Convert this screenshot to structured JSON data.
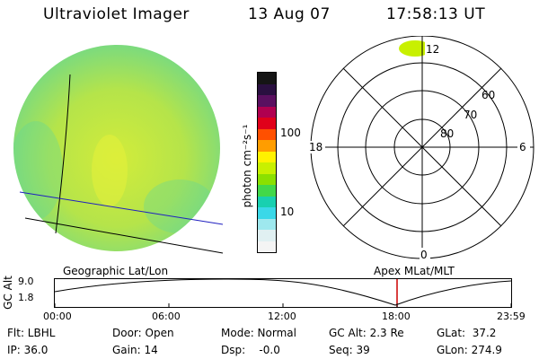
{
  "header": {
    "instrument": "Ultraviolet Imager",
    "date": "13 Aug 07",
    "time": "17:58:13 UT"
  },
  "colorbar": {
    "unit_label": "photon cm⁻²s⁻¹",
    "ticks": [
      "100",
      "10"
    ],
    "colors": [
      "#151515",
      "#2a1040",
      "#5a1060",
      "#b00050",
      "#e0001a",
      "#ff5000",
      "#ff9d00",
      "#fff200",
      "#c8f000",
      "#8be000",
      "#42d84a",
      "#18d0b0",
      "#3ad8e8",
      "#9ee8ee",
      "#e0f0f2",
      "#f4f4f4"
    ]
  },
  "polar_plot": {
    "mlt_labels": {
      "top": "12",
      "left": "18",
      "right": "6",
      "bottom": "0"
    },
    "lat_labels": [
      "60",
      "70",
      "80"
    ]
  },
  "timeline": {
    "left_title": "Geographic Lat/Lon",
    "right_title": "Apex MLat/MLT",
    "axis_label": "GC Alt",
    "y_ticks": [
      "9.0",
      "1.8"
    ],
    "x_ticks": [
      "00:00",
      "06:00",
      "12:00",
      "18:00",
      "23:59"
    ],
    "marker_color": "#cc0000"
  },
  "info": {
    "flt": "Flt: LBHL",
    "door": "Door: Open",
    "mode": "Mode: Normal",
    "gc_alt": "GC Alt: 2.3 Re",
    "glat": "GLat:  37.2",
    "ip": "IP: 36.0",
    "gain": "Gain: 14",
    "dsp": "Dsp:    -0.0",
    "seq": "Seq: 39",
    "glon": "GLon: 274.9"
  }
}
